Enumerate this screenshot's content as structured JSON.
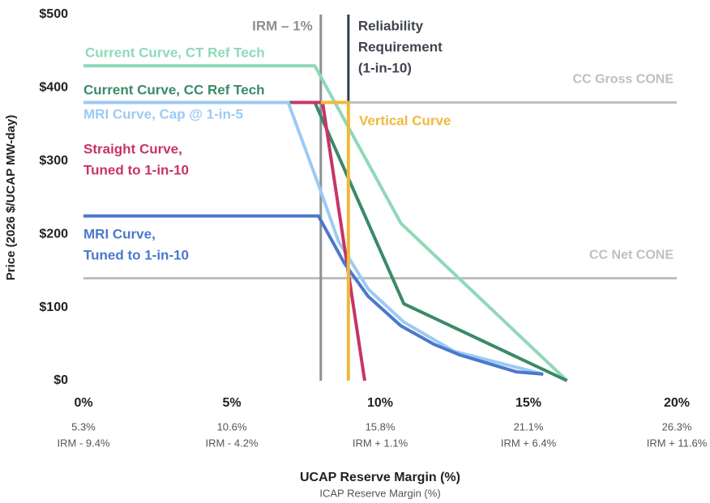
{
  "chart_data": {
    "type": "line",
    "ylabel": "Price (2026 $/UCAP MW-day)",
    "xlabel": "UCAP Reserve Margin (%)",
    "xlabel2": "ICAP Reserve Margin (%)",
    "xlim": [
      0,
      20
    ],
    "ylim": [
      0,
      500
    ],
    "xticks": [
      {
        "value": 0,
        "label": "0%"
      },
      {
        "value": 5,
        "label": "5%"
      },
      {
        "value": 10,
        "label": "10%"
      },
      {
        "value": 15,
        "label": "15%"
      },
      {
        "value": 20,
        "label": "20%"
      }
    ],
    "icap_labels": [
      "5.3%",
      "10.6%",
      "15.8%",
      "21.1%",
      "26.3%"
    ],
    "irm_labels": [
      "IRM - 9.4%",
      "IRM - 4.2%",
      "IRM + 1.1%",
      "IRM + 6.4%",
      "IRM + 11.6%"
    ],
    "yticks": [
      {
        "value": 0,
        "label": "$0"
      },
      {
        "value": 100,
        "label": "$100"
      },
      {
        "value": 200,
        "label": "$200"
      },
      {
        "value": 300,
        "label": "$300"
      },
      {
        "value": 400,
        "label": "$400"
      },
      {
        "value": 500,
        "label": "$500"
      }
    ],
    "hlines": [
      {
        "label": "CC Gross CONE",
        "y": 380,
        "color": "#bfbfbf"
      },
      {
        "label": "CC Net CONE",
        "y": 140,
        "color": "#bfbfbf"
      }
    ],
    "vlines": [
      {
        "label": [
          "IRM – 1%"
        ],
        "x": 8.0,
        "color": "#8c8f94",
        "text_color": "#8c8f94"
      },
      {
        "label": [
          "Reliability",
          "Requirement",
          "(1-in-10)"
        ],
        "x": 8.93,
        "color": "#333d4a",
        "text_color": "#3f4450"
      }
    ],
    "series": [
      {
        "name": [
          "Current Curve, CT Ref Tech"
        ],
        "color": "#8ed9b8",
        "x": [
          0,
          7.8,
          10.7,
          16.3
        ],
        "values": [
          430,
          430,
          215,
          0
        ]
      },
      {
        "name": [
          "Current Curve, CC Ref Tech"
        ],
        "color": "#3a8a67",
        "x": [
          0,
          7.8,
          10.8,
          16.3
        ],
        "values": [
          380,
          380,
          105,
          0
        ]
      },
      {
        "name": [
          "MRI Curve, Cap @ 1-in-5"
        ],
        "color": "#9ccaf5",
        "x": [
          0,
          6.9,
          7.9,
          8.6,
          9.6,
          10.8,
          12.5,
          15.4
        ],
        "values": [
          380,
          380,
          270,
          190,
          125,
          80,
          40,
          10
        ]
      },
      {
        "name": [
          "Straight Curve,",
          "Tuned to 1-in-10"
        ],
        "color": "#c8336a",
        "x": [
          7.0,
          8.06,
          9.48
        ],
        "values": [
          380,
          380,
          0
        ]
      },
      {
        "name": [
          "MRI Curve,",
          "Tuned to 1-in-10"
        ],
        "color": "#4a78cc",
        "x": [
          0,
          7.92,
          8.8,
          9.6,
          10.7,
          11.8,
          12.7,
          14.6,
          15.5
        ],
        "values": [
          225,
          225,
          160,
          115,
          75,
          50,
          35,
          12,
          9
        ]
      },
      {
        "name": [
          "Vertical Curve"
        ],
        "color": "#f0b93b",
        "x": [
          8.0,
          8.93,
          8.93
        ],
        "values": [
          380,
          380,
          0
        ]
      }
    ]
  }
}
